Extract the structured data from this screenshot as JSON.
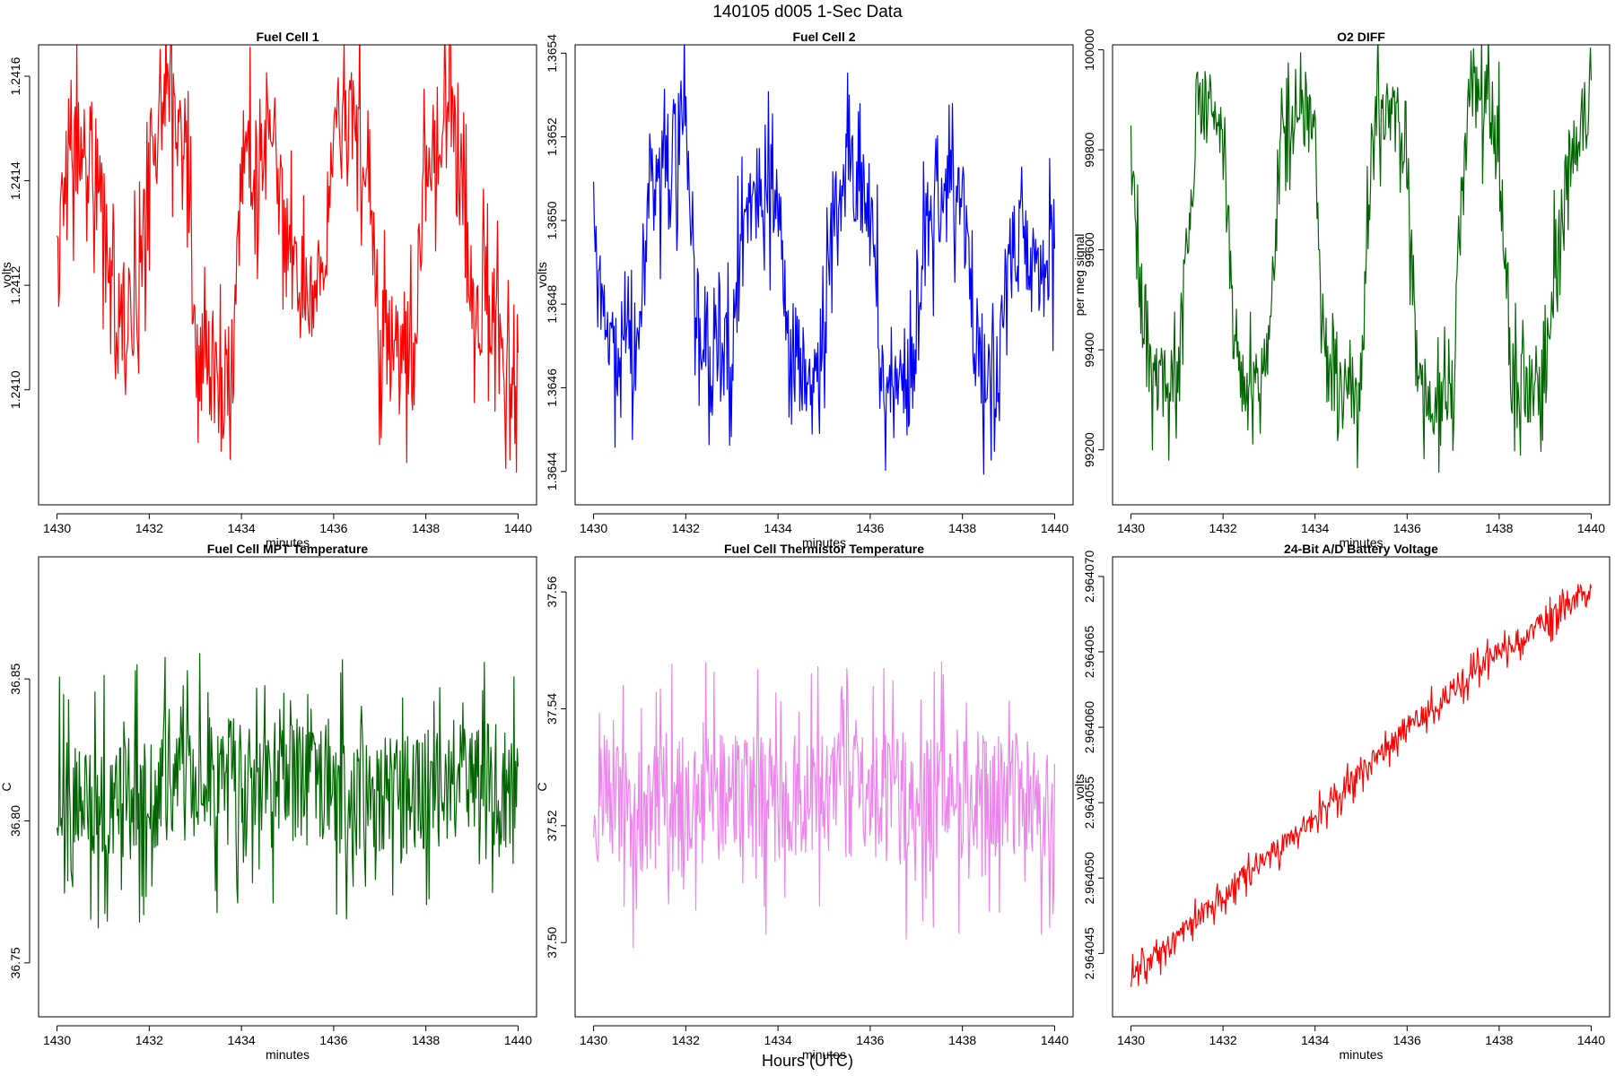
{
  "figure": {
    "title": "140105   d005   1-Sec Data",
    "xlabel": "Hours (UTC)"
  },
  "chart_data": [
    {
      "type": "line",
      "title": "Fuel Cell 1",
      "xlabel": "minutes",
      "ylabel": "volts",
      "color": "#ff0000",
      "xlim": [
        1429.6,
        1440.4
      ],
      "ylim": [
        1.24078,
        1.24166
      ],
      "xticks": [
        1430,
        1432,
        1434,
        1436,
        1438,
        1440
      ],
      "yticks": [
        1.241,
        1.2412,
        1.2414,
        1.2416
      ],
      "ytick_labels": [
        "1.2410",
        "1.2412",
        "1.2414",
        "1.2416"
      ],
      "x": [
        1430.0,
        1430.25,
        1430.5,
        1430.75,
        1431.0,
        1431.25,
        1431.5,
        1431.75,
        1432.0,
        1432.25,
        1432.5,
        1432.75,
        1433.0,
        1433.25,
        1433.5,
        1433.75,
        1434.0,
        1434.25,
        1434.5,
        1434.75,
        1435.0,
        1435.25,
        1435.5,
        1435.75,
        1436.0,
        1436.25,
        1436.5,
        1436.75,
        1437.0,
        1437.25,
        1437.5,
        1437.75,
        1438.0,
        1438.25,
        1438.5,
        1438.75,
        1439.0,
        1439.25,
        1439.5,
        1439.75,
        1440.0
      ],
      "y": [
        1.24123,
        1.24148,
        1.24147,
        1.24146,
        1.24132,
        1.24113,
        1.24114,
        1.24116,
        1.24145,
        1.24152,
        1.24156,
        1.24151,
        1.2411,
        1.24104,
        1.24099,
        1.24095,
        1.24143,
        1.24145,
        1.24146,
        1.24145,
        1.24125,
        1.24118,
        1.24118,
        1.24118,
        1.24149,
        1.2415,
        1.24148,
        1.24146,
        1.24111,
        1.24107,
        1.24106,
        1.24106,
        1.24142,
        1.2415,
        1.24153,
        1.2414,
        1.24115,
        1.24118,
        1.24114,
        1.24102,
        1.24108
      ],
      "noise": 0.00011
    },
    {
      "type": "line",
      "title": "Fuel Cell 2",
      "xlabel": "minutes",
      "ylabel": "volts",
      "color": "#0000ff",
      "xlim": [
        1429.6,
        1440.4
      ],
      "ylim": [
        1.36432,
        1.36542
      ],
      "xticks": [
        1430,
        1432,
        1434,
        1436,
        1438,
        1440
      ],
      "yticks": [
        1.3644,
        1.3646,
        1.3648,
        1.365,
        1.3652,
        1.3654
      ],
      "ytick_labels": [
        "1.3644",
        "1.3646",
        "1.3648",
        "1.3650",
        "1.3652",
        "1.3654"
      ],
      "x": [
        1430.0,
        1430.25,
        1430.5,
        1430.75,
        1431.0,
        1431.25,
        1431.5,
        1431.75,
        1432.0,
        1432.25,
        1432.5,
        1432.75,
        1433.0,
        1433.25,
        1433.5,
        1433.75,
        1434.0,
        1434.25,
        1434.5,
        1434.75,
        1435.0,
        1435.25,
        1435.5,
        1435.75,
        1436.0,
        1436.25,
        1436.5,
        1436.75,
        1437.0,
        1437.25,
        1437.5,
        1437.75,
        1438.0,
        1438.25,
        1438.5,
        1438.75,
        1439.0,
        1439.25,
        1439.5,
        1439.75,
        1440.0
      ],
      "y": [
        1.365,
        1.36475,
        1.36465,
        1.36462,
        1.3648,
        1.36505,
        1.36512,
        1.36518,
        1.3652,
        1.3648,
        1.3647,
        1.36468,
        1.3647,
        1.365,
        1.36505,
        1.36508,
        1.36505,
        1.3647,
        1.36465,
        1.3646,
        1.36472,
        1.36508,
        1.36512,
        1.3651,
        1.36505,
        1.36468,
        1.3646,
        1.36458,
        1.3647,
        1.365,
        1.36505,
        1.36508,
        1.36505,
        1.36468,
        1.36462,
        1.36462,
        1.3649,
        1.36495,
        1.3649,
        1.36488,
        1.36495
      ],
      "noise": 0.00012
    },
    {
      "type": "line",
      "title": "O2 DIFF",
      "xlabel": "minutes",
      "ylabel": "per meg signal",
      "color": "#006400",
      "xlim": [
        1429.6,
        1440.4
      ],
      "ylim": [
        99090,
        100010
      ],
      "xticks": [
        1430,
        1432,
        1434,
        1436,
        1438,
        1440
      ],
      "yticks": [
        99200,
        99400,
        99600,
        99800,
        100000
      ],
      "ytick_labels": [
        "99200",
        "99400",
        "99600",
        "99800",
        "100000"
      ],
      "x": [
        1430.0,
        1430.25,
        1430.5,
        1430.75,
        1431.0,
        1431.25,
        1431.5,
        1431.75,
        1432.0,
        1432.25,
        1432.5,
        1432.75,
        1433.0,
        1433.25,
        1433.5,
        1433.75,
        1434.0,
        1434.25,
        1434.5,
        1434.75,
        1435.0,
        1435.25,
        1435.5,
        1435.75,
        1436.0,
        1436.25,
        1436.5,
        1436.75,
        1437.0,
        1437.25,
        1437.5,
        1437.75,
        1438.0,
        1438.25,
        1438.5,
        1438.75,
        1439.0,
        1439.25,
        1439.5,
        1439.75,
        1440.0
      ],
      "y": [
        99780,
        99420,
        99340,
        99330,
        99350,
        99650,
        99880,
        99890,
        99880,
        99380,
        99320,
        99320,
        99400,
        99860,
        99880,
        99880,
        99800,
        99330,
        99310,
        99320,
        99330,
        99860,
        99880,
        99870,
        99760,
        99330,
        99310,
        99310,
        99330,
        99860,
        99890,
        99900,
        99830,
        99340,
        99320,
        99330,
        99330,
        99620,
        99750,
        99850,
        99890
      ],
      "noise": 75
    },
    {
      "type": "line",
      "title": "Fuel Cell MPT Temperature",
      "xlabel": "minutes",
      "ylabel": "C",
      "color": "#006400",
      "xlim": [
        1429.6,
        1440.4
      ],
      "ylim": [
        36.731,
        36.893
      ],
      "xticks": [
        1430,
        1432,
        1434,
        1436,
        1438,
        1440
      ],
      "yticks": [
        36.75,
        36.8,
        36.85
      ],
      "ytick_labels": [
        "36.75",
        "36.80",
        "36.85"
      ],
      "x": [
        1430,
        1431,
        1432,
        1433,
        1434,
        1435,
        1436,
        1437,
        1438,
        1439,
        1440
      ],
      "y": [
        36.81,
        36.805,
        36.81,
        36.815,
        36.815,
        36.815,
        36.81,
        36.805,
        36.812,
        36.815,
        36.812
      ],
      "noise": 0.022
    },
    {
      "type": "line",
      "title": "Fuel Cell Thermistor Temperature",
      "xlabel": "minutes",
      "ylabel": "C",
      "color": "#ee82ee",
      "xlim": [
        1429.6,
        1440.4
      ],
      "ylim": [
        37.4873,
        37.566
      ],
      "xticks": [
        1430,
        1432,
        1434,
        1436,
        1438,
        1440
      ],
      "yticks": [
        37.5,
        37.52,
        37.54,
        37.56
      ],
      "ytick_labels": [
        "37.50",
        "37.52",
        "37.54",
        "37.56"
      ],
      "x": [
        1430,
        1431,
        1432,
        1433,
        1434,
        1435,
        1436,
        1437,
        1438,
        1439,
        1440
      ],
      "y": [
        37.525,
        37.523,
        37.524,
        37.525,
        37.524,
        37.525,
        37.525,
        37.524,
        37.525,
        37.526,
        37.525
      ],
      "noise": 0.011
    },
    {
      "type": "line",
      "title": "24-Bit A/D Battery Voltage",
      "xlabel": "minutes",
      "ylabel": "volts",
      "color": "#ff0000",
      "xlim": [
        1429.6,
        1440.4
      ],
      "ylim": [
        2.9640408,
        2.9640713
      ],
      "xticks": [
        1430,
        1432,
        1434,
        1436,
        1438,
        1440
      ],
      "yticks": [
        2.964045,
        2.96405,
        2.964055,
        2.96406,
        2.964065,
        2.96407
      ],
      "ytick_labels": [
        "2.964045",
        "2.964050",
        "2.964055",
        "2.964060",
        "2.964065",
        "2.964070"
      ],
      "x": [
        1430,
        1431,
        1432,
        1433,
        1434,
        1435,
        1436,
        1437,
        1438,
        1439,
        1440
      ],
      "y": [
        2.9640435,
        2.964046,
        2.964049,
        2.9640515,
        2.964054,
        2.964057,
        2.96406,
        2.9640625,
        2.964065,
        2.964067,
        2.9640688
      ],
      "noise": 7e-07
    }
  ]
}
